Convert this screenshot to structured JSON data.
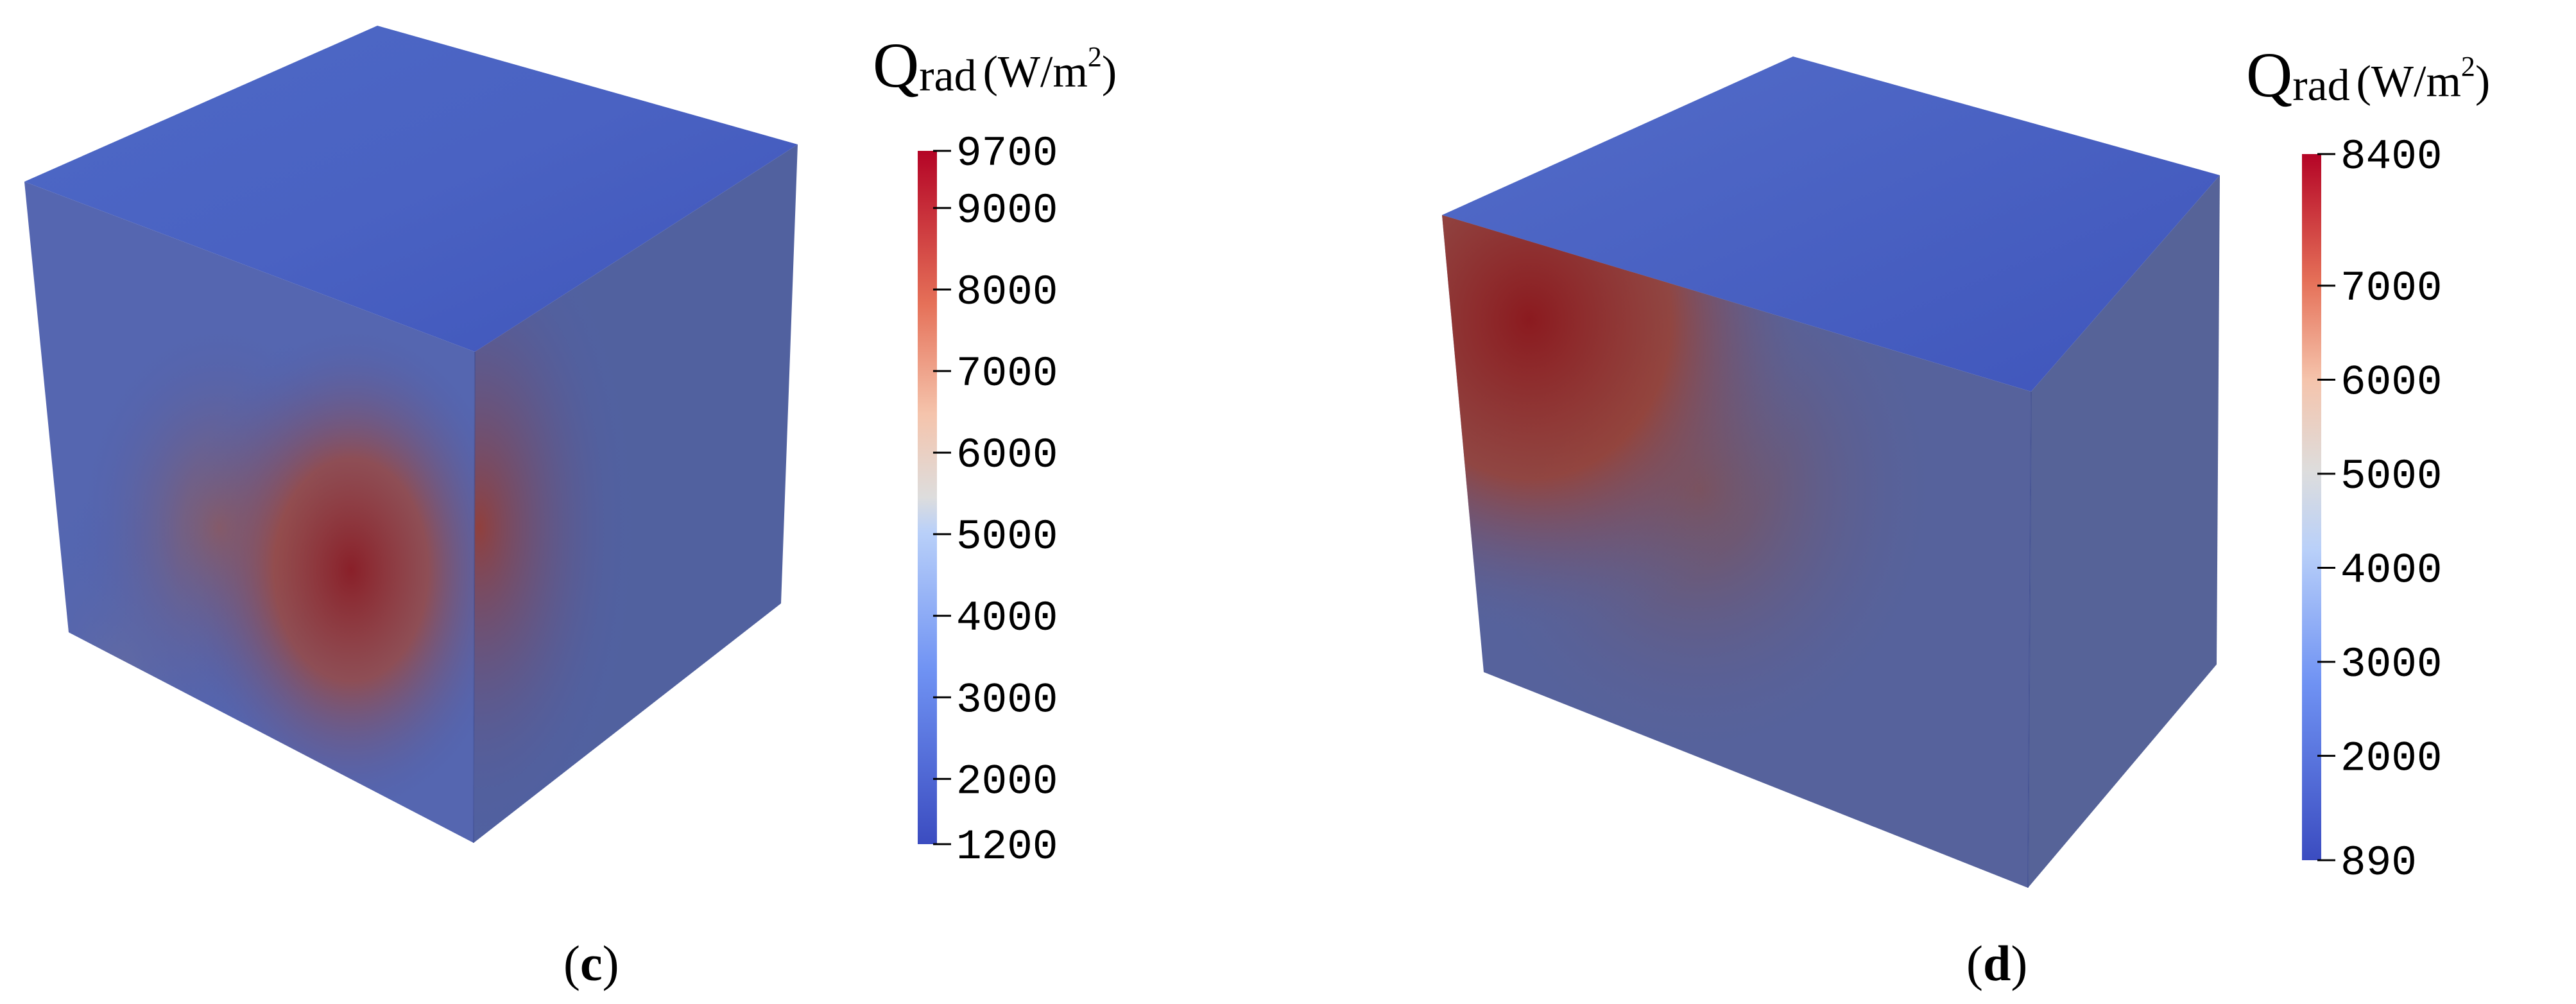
{
  "figures": [
    {
      "label": "c",
      "colorbar": {
        "quantity": "Q",
        "subscript": "rad",
        "unit": "(W/m",
        "unit_sup": "2",
        "unit_close": ")",
        "min": 1200,
        "max": 9700,
        "ticks": [
          9700,
          9000,
          8000,
          7000,
          6000,
          5000,
          4000,
          3000,
          2000,
          1200
        ]
      }
    },
    {
      "label": "d",
      "colorbar": {
        "quantity": "Q",
        "subscript": "rad",
        "unit": "(W/m",
        "unit_sup": "2",
        "unit_close": ")",
        "min": 890,
        "max": 8400,
        "ticks": [
          8400,
          7000,
          6000,
          5000,
          4000,
          3000,
          2000,
          890
        ]
      }
    }
  ],
  "colors": {
    "cold": "#3b4cc0",
    "mid": "#dddddd",
    "hot": "#b40426"
  }
}
